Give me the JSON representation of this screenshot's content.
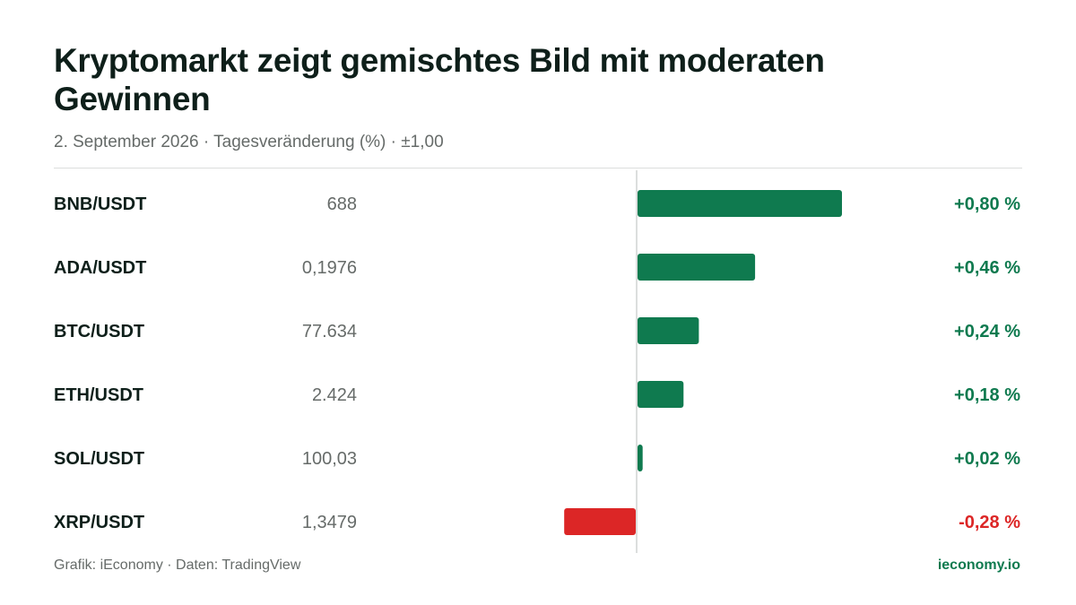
{
  "header": {
    "title": "Kryptomarkt zeigt gemischtes Bild mit moderaten Gewinnen",
    "subtitle": "2. September 2026 · Tagesveränderung (%) · ±1,00"
  },
  "footer": {
    "source": "Grafik: iEconomy · Daten: TradingView",
    "brand": "ieconomy.io"
  },
  "colors": {
    "positive": "#0f7a4f",
    "negative": "#dc2626",
    "label": "#0e1f1a",
    "price": "#666b69",
    "axis": "#d0d3d2"
  },
  "chart_data": {
    "type": "bar",
    "orientation": "horizontal",
    "title": "Kryptomarkt zeigt gemischtes Bild mit moderaten Gewinnen",
    "subtitle": "2. September 2026 · Tagesveränderung (%) · ±1,00",
    "xlim": [
      -1.0,
      1.0
    ],
    "grid": false,
    "legend": "none",
    "categories": [
      "BNB/USDT",
      "ADA/USDT",
      "BTC/USDT",
      "ETH/USDT",
      "SOL/USDT",
      "XRP/USDT"
    ],
    "prices": [
      "688",
      "0,1976",
      "77.634",
      "2.424",
      "100,03",
      "1,3479"
    ],
    "values": [
      0.8,
      0.46,
      0.24,
      0.18,
      0.02,
      -0.28
    ],
    "value_labels": [
      "+0,80 %",
      "+0,46 %",
      "+0,24 %",
      "+0,18 %",
      "+0,02 %",
      "-0,28 %"
    ]
  }
}
